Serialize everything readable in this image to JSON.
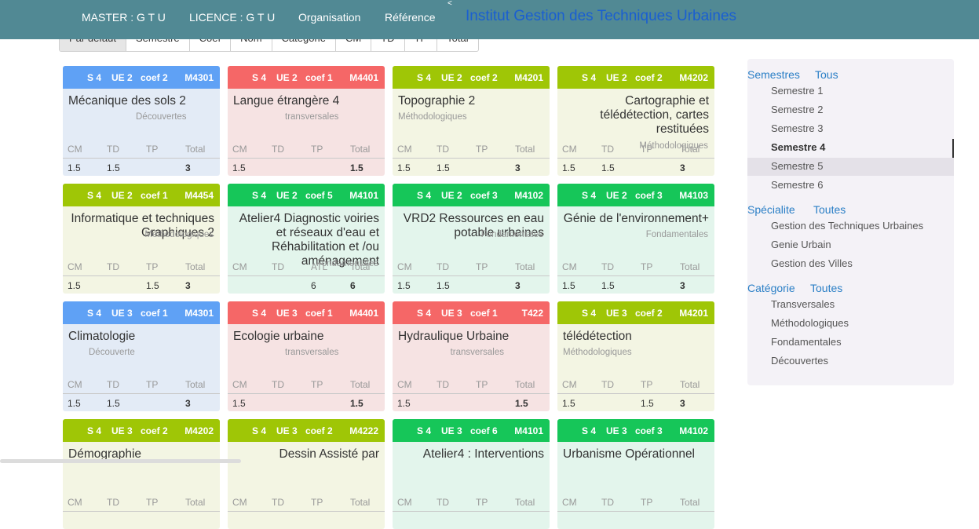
{
  "nav": {
    "items": [
      "MASTER : G T U",
      "LICENCE : G T U",
      "Organisation",
      "Référence"
    ],
    "caret": "<",
    "title": "Institut Gestion des Techniques Urbaines"
  },
  "sortbar": [
    "Par défaut",
    "Semestre",
    "Coef",
    "Nom",
    "Catégorie",
    "CM",
    "TD",
    "TP",
    "Total"
  ],
  "card_labels": {
    "cm": "CM",
    "td": "TD",
    "tp": "TP",
    "atl": "ATL",
    "total": "Total"
  },
  "cards": [
    {
      "color": "blue",
      "sem": "S 4",
      "ue": "UE 2",
      "coef": "coef 2",
      "code": "M4301",
      "title": "Mécanique des sols 2",
      "align": "left",
      "category": "Découvertes",
      "cm": "1.5",
      "td": "1.5",
      "tp": "",
      "total": "3"
    },
    {
      "color": "red",
      "sem": "S 4",
      "ue": "UE 2",
      "coef": "coef 1",
      "code": "M4401",
      "title": "Langue étrangère 4",
      "align": "left",
      "category": "transversales",
      "cm": "1.5",
      "td": "",
      "tp": "",
      "total": "1.5"
    },
    {
      "color": "lime",
      "sem": "S 4",
      "ue": "UE 2",
      "coef": "coef 2",
      "code": "M4201",
      "title": "Topographie 2",
      "align": "left",
      "category": "Méthodologiques",
      "cm": "1.5",
      "td": "1.5",
      "tp": "",
      "total": "3"
    },
    {
      "color": "lime",
      "sem": "S 4",
      "ue": "UE 2",
      "coef": "coef 2",
      "code": "M4202",
      "title": "Cartographie et télédétection, cartes restituées",
      "align": "right",
      "category": "Méthodologiques",
      "cm": "1.5",
      "td": "1.5",
      "tp": "",
      "total": "3"
    },
    {
      "color": "lime",
      "sem": "S 4",
      "ue": "UE 2",
      "coef": "coef 1",
      "code": "M4454",
      "title": "Informatique et techniques Graphiques 2",
      "align": "right",
      "category": "Méthodologiques",
      "cm": "1.5",
      "td": "",
      "tp": "1.5",
      "total": "3"
    },
    {
      "color": "green",
      "sem": "S 4",
      "ue": "UE 2",
      "coef": "coef 5",
      "code": "M4101",
      "title": "Atelier4 Diagnostic voiries et réseaux d'eau et Réhabilitation et /ou aménagement",
      "align": "right",
      "category": "Fondamentales",
      "cm": "",
      "td": "",
      "tp": "6",
      "total": "6",
      "tp_is_atl": true
    },
    {
      "color": "green",
      "sem": "S 4",
      "ue": "UE 2",
      "coef": "coef 3",
      "code": "M4102",
      "title": "VRD2 Ressources en eau potable urbaines",
      "align": "right",
      "category": "Fondamentales",
      "cm": "1.5",
      "td": "1.5",
      "tp": "",
      "total": "3"
    },
    {
      "color": "green",
      "sem": "S 4",
      "ue": "UE 2",
      "coef": "coef 3",
      "code": "M4103",
      "title": "Génie de l'environnement+",
      "align": "right",
      "category": "Fondamentales",
      "cm": "1.5",
      "td": "1.5",
      "tp": "",
      "total": "3"
    },
    {
      "color": "blue",
      "sem": "S 4",
      "ue": "UE 3",
      "coef": "coef 1",
      "code": "M4301",
      "title": "Climatologie",
      "align": "left",
      "category": "Découverte",
      "cm": "1.5",
      "td": "1.5",
      "tp": "",
      "total": "3"
    },
    {
      "color": "red",
      "sem": "S 4",
      "ue": "UE 3",
      "coef": "coef 1",
      "code": "M4401",
      "title": "Ecologie urbaine",
      "align": "left",
      "category": "transversales",
      "cm": "1.5",
      "td": "",
      "tp": "",
      "total": "1.5"
    },
    {
      "color": "red",
      "sem": "S 4",
      "ue": "UE 3",
      "coef": "coef 1",
      "code": "T422",
      "title": "Hydraulique Urbaine",
      "align": "left",
      "category": "transversales",
      "cm": "1.5",
      "td": "",
      "tp": "",
      "total": "1.5",
      "cat_right": true
    },
    {
      "color": "lime",
      "sem": "S 4",
      "ue": "UE 3",
      "coef": "coef 2",
      "code": "M4201",
      "title": "télédétection",
      "align": "left",
      "category": "Méthodologiques",
      "cm": "1.5",
      "td": "",
      "tp": "1.5",
      "total": "3"
    },
    {
      "color": "lime",
      "sem": "S 4",
      "ue": "UE 3",
      "coef": "coef 2",
      "code": "M4202",
      "title": "Démographie",
      "align": "left",
      "category": "",
      "cm": "",
      "td": "",
      "tp": "",
      "total": ""
    },
    {
      "color": "lime",
      "sem": "S 4",
      "ue": "UE 3",
      "coef": "coef 2",
      "code": "M4222",
      "title": "Dessin Assisté par",
      "align": "right",
      "category": "",
      "cm": "",
      "td": "",
      "tp": "",
      "total": ""
    },
    {
      "color": "green",
      "sem": "S 4",
      "ue": "UE 3",
      "coef": "coef 6",
      "code": "M4101",
      "title": "Atelier4 : Interventions",
      "align": "right",
      "category": "",
      "cm": "",
      "td": "",
      "tp": "",
      "total": ""
    },
    {
      "color": "green",
      "sem": "S 4",
      "ue": "UE 3",
      "coef": "coef 3",
      "code": "M4102",
      "title": "Urbanisme Opérationnel",
      "align": "left",
      "category": "",
      "cm": "",
      "td": "",
      "tp": "",
      "total": ""
    }
  ],
  "sidebar": {
    "semestres": {
      "heading": "Semestres",
      "all": "Tous",
      "items": [
        "Semestre 1",
        "Semestre 2",
        "Semestre 3",
        "Semestre 4",
        "Semestre 5",
        "Semestre 6"
      ],
      "selected": "Semestre 4",
      "hovered": "Semestre 5"
    },
    "specialite": {
      "heading": "Spécialite",
      "all": "Toutes",
      "items": [
        "Gestion des Techniques Urbaines",
        "Genie Urbain",
        "Gestion des Villes"
      ]
    },
    "categorie": {
      "heading": "Catégorie",
      "all": "Toutes",
      "items": [
        "Transversales",
        "Méthodologiques",
        "Fondamentales",
        "Découvertes"
      ]
    }
  }
}
